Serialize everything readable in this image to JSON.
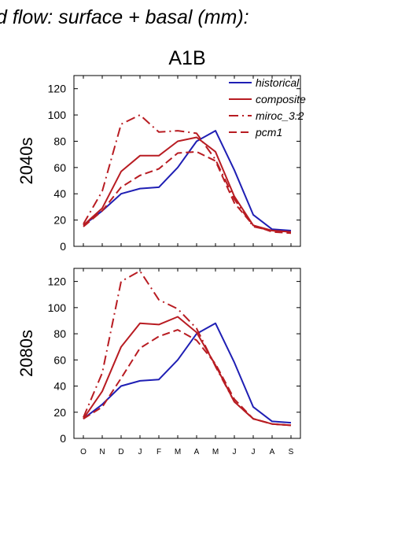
{
  "figure": {
    "title": "d flow: surface + basal (mm):",
    "scenario": "A1B"
  },
  "chart_data": [
    {
      "type": "line",
      "row_label": "2040s",
      "categories": [
        "O",
        "N",
        "D",
        "J",
        "F",
        "M",
        "A",
        "M",
        "J",
        "J",
        "A",
        "S"
      ],
      "ylim": [
        0,
        130
      ],
      "yticks": [
        0,
        20,
        40,
        60,
        80,
        100,
        120
      ],
      "grid": false,
      "legend": "top-right",
      "series": [
        {
          "name": "historical",
          "color": "#1f1fb4",
          "dash": "solid",
          "values": [
            16,
            27,
            40,
            44,
            45,
            60,
            80,
            88,
            58,
            24,
            13,
            12
          ]
        },
        {
          "name": "composite",
          "color": "#b81c22",
          "dash": "solid",
          "values": [
            16,
            29,
            57,
            69,
            69,
            80,
            83,
            72,
            38,
            16,
            12,
            11
          ]
        },
        {
          "name": "miroc_3.2",
          "color": "#b81c22",
          "dash": "dashdot",
          "values": [
            17,
            42,
            93,
            100,
            87,
            88,
            86,
            66,
            36,
            15,
            12,
            11
          ]
        },
        {
          "name": "pcm1",
          "color": "#b81c22",
          "dash": "dash",
          "values": [
            15,
            27,
            45,
            54,
            59,
            71,
            72,
            65,
            33,
            16,
            11,
            10
          ]
        }
      ]
    },
    {
      "type": "line",
      "row_label": "2080s",
      "categories": [
        "O",
        "N",
        "D",
        "J",
        "F",
        "M",
        "A",
        "M",
        "J",
        "J",
        "A",
        "S"
      ],
      "ylim": [
        0,
        130
      ],
      "yticks": [
        0,
        20,
        40,
        60,
        80,
        100,
        120
      ],
      "grid": false,
      "legend": "none",
      "series": [
        {
          "name": "historical",
          "color": "#1f1fb4",
          "dash": "solid",
          "values": [
            15,
            26,
            40,
            44,
            45,
            60,
            80,
            88,
            58,
            24,
            13,
            12
          ]
        },
        {
          "name": "composite",
          "color": "#b81c22",
          "dash": "solid",
          "values": [
            15,
            36,
            70,
            88,
            87,
            93,
            81,
            56,
            28,
            15,
            11,
            10
          ]
        },
        {
          "name": "miroc_3.2",
          "color": "#b81c22",
          "dash": "dashdot",
          "values": [
            16,
            50,
            120,
            128,
            106,
            99,
            84,
            55,
            28,
            15,
            11,
            10
          ]
        },
        {
          "name": "pcm1",
          "color": "#b81c22",
          "dash": "dash",
          "values": [
            15,
            24,
            46,
            69,
            78,
            83,
            75,
            57,
            30,
            15,
            11,
            10
          ]
        }
      ]
    }
  ]
}
